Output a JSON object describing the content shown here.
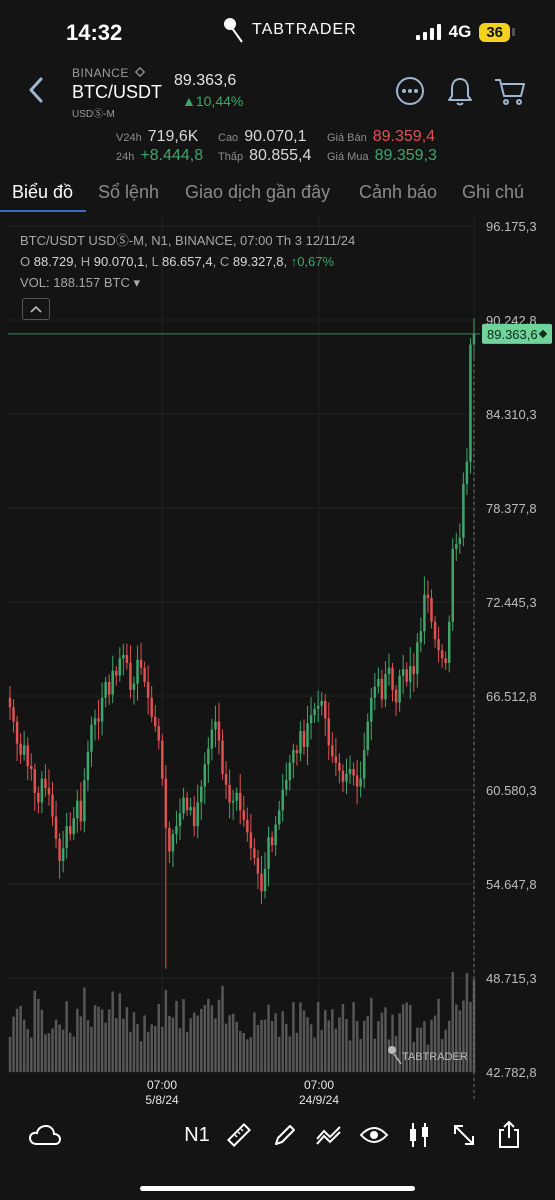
{
  "status_bar": {
    "time": "14:32",
    "logo_text": "TABTRADER",
    "network": "4G",
    "battery": "36"
  },
  "header": {
    "exchange": "BINANCE",
    "pair": "BTC/USDT",
    "contract": "USDⓈ-M",
    "last_price": "89.363,6",
    "change": "▲10,44%"
  },
  "stats": {
    "v24h_label": "V24h",
    "v24h_value": "719,6K",
    "high_label": "Cao",
    "high_value": "90.070,1",
    "ask_label": "Giá Bán",
    "ask_value": "89.359,4",
    "change24_label": "24h",
    "change24_value": "+8.444,8",
    "low_label": "Thấp",
    "low_value": "80.855,4",
    "bid_label": "Giá Mua",
    "bid_value": "89.359,3"
  },
  "tabs": [
    {
      "label": "Biểu đồ",
      "active": true
    },
    {
      "label": "Sổ lệnh"
    },
    {
      "label": "Giao dịch gần đây"
    },
    {
      "label": "Cảnh báo"
    },
    {
      "label": "Ghi chú"
    }
  ],
  "chart_info": {
    "line1": "BTC/USDT USDⓈ-M, N1, BINANCE, 07:00 Th 3 12/11/24",
    "o_label": "O",
    "o_value": "88.729",
    "h_label": "H",
    "h_value": "90.070,1",
    "l_label": "L",
    "l_value": "86.657,4",
    "c_label": "C",
    "c_value": "89.327,8",
    "c_change": "↑0,67%",
    "vol_label": "VOL:",
    "vol_value": "188.157 BTC ▾"
  },
  "chart_data": {
    "type": "candlestick",
    "price_label": "89.363,6",
    "y_ticks": [
      "96.175,3",
      "90.242,8",
      "84.310,3",
      "78.377,8",
      "72.445,3",
      "66.512,8",
      "60.580,3",
      "54.647,8",
      "48.715,3",
      "42.782,8"
    ],
    "ylim": [
      42782.8,
      96175.3
    ],
    "x_ticks": [
      {
        "time": "07:00",
        "date": "5/8/24"
      },
      {
        "time": "07:00",
        "date": "24/9/24"
      }
    ],
    "last_price": 89363.6,
    "close_series": [
      65800,
      64900,
      63500,
      62800,
      63400,
      62100,
      61900,
      60400,
      59800,
      61300,
      60700,
      60300,
      58900,
      57500,
      56100,
      56900,
      58300,
      57800,
      58800,
      59900,
      58600,
      61200,
      63000,
      64700,
      65100,
      64900,
      66400,
      67400,
      66600,
      68100,
      67800,
      68900,
      69100,
      68600,
      66900,
      67300,
      68800,
      68300,
      67400,
      66400,
      65200,
      64600,
      63700,
      61300,
      58200,
      56700,
      57800,
      58300,
      59100,
      60100,
      59300,
      59500,
      58300,
      59800,
      60800,
      62200,
      63200,
      64400,
      64900,
      63700,
      61600,
      60900,
      59800,
      59900,
      60400,
      59300,
      58700,
      57900,
      56900,
      56300,
      55300,
      54200,
      55600,
      57600,
      57100,
      58400,
      59300,
      60600,
      61200,
      62300,
      63100,
      62900,
      64300,
      63300,
      64800,
      65300,
      65700,
      65900,
      66200,
      65100,
      63400,
      62700,
      62300,
      61800,
      61100,
      61600,
      61900,
      61500,
      60800,
      61300,
      63100,
      64900,
      66400,
      67100,
      67600,
      66300,
      67900,
      68300,
      66900,
      66100,
      67800,
      68200,
      67400,
      68400,
      67900,
      69900,
      70600,
      72900,
      72700,
      71200,
      70100,
      69400,
      68900,
      68600,
      71200,
      75800,
      76100,
      76500,
      79900,
      81300,
      88700,
      89360
    ],
    "watermark": "TABTRADER"
  },
  "toolbar": {
    "interval": "N1"
  }
}
